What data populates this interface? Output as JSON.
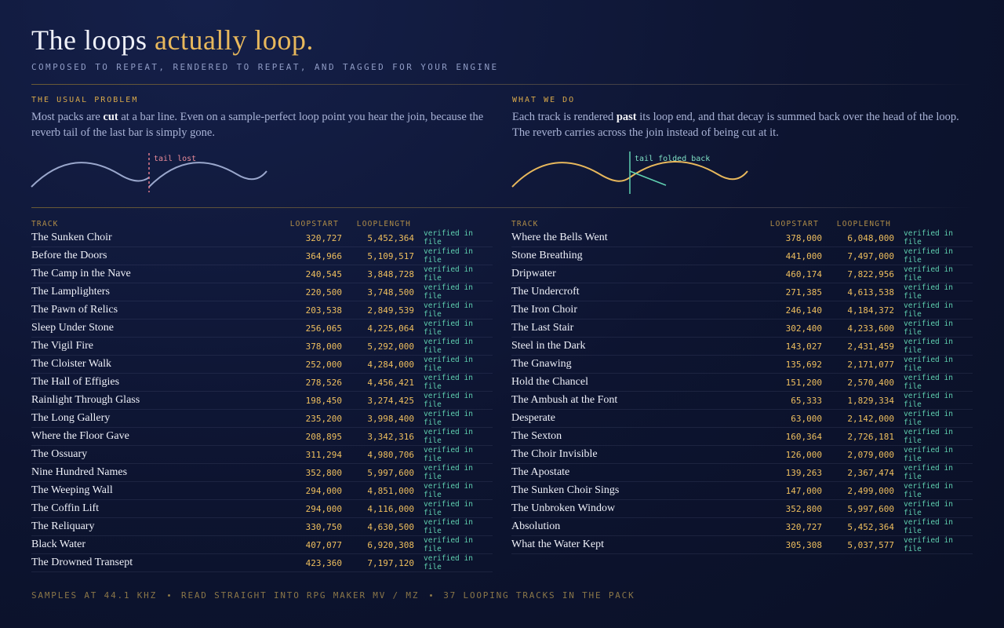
{
  "header": {
    "title_plain": "The loops",
    "title_accent": "actually loop.",
    "subtitle": "COMPOSED TO REPEAT, RENDERED TO REPEAT, AND TAGGED FOR YOUR ENGINE"
  },
  "problem": {
    "label": "THE USUAL PROBLEM",
    "text_before": "Most packs are",
    "text_bold": "cut",
    "text_after": "at a bar line. Even on a sample-perfect loop point you hear the join, because the reverb tail of the last bar is simply gone.",
    "diagram_label": "tail lost"
  },
  "solution": {
    "label": "WHAT WE DO",
    "text_before": "Each track is rendered",
    "text_bold": "past",
    "text_after": "its loop end, and that decay is summed back over the head of the loop. The reverb carries across the join instead of being cut at it.",
    "diagram_label": "tail folded back"
  },
  "tables": [
    {
      "columns": [
        "TRACK",
        "LOOPSTART",
        "LOOPLENGTH"
      ],
      "rows": [
        [
          "The Sunken Choir",
          "320,727",
          "5,452,364",
          "verified in file"
        ],
        [
          "Before the Doors",
          "364,966",
          "5,109,517",
          "verified in file"
        ],
        [
          "The Camp in the Nave",
          "240,545",
          "3,848,728",
          "verified in file"
        ],
        [
          "The Lamplighters",
          "220,500",
          "3,748,500",
          "verified in file"
        ],
        [
          "The Pawn of Relics",
          "203,538",
          "2,849,539",
          "verified in file"
        ],
        [
          "Sleep Under Stone",
          "256,065",
          "4,225,064",
          "verified in file"
        ],
        [
          "The Vigil Fire",
          "378,000",
          "5,292,000",
          "verified in file"
        ],
        [
          "The Cloister Walk",
          "252,000",
          "4,284,000",
          "verified in file"
        ],
        [
          "The Hall of Effigies",
          "278,526",
          "4,456,421",
          "verified in file"
        ],
        [
          "Rainlight Through Glass",
          "198,450",
          "3,274,425",
          "verified in file"
        ],
        [
          "The Long Gallery",
          "235,200",
          "3,998,400",
          "verified in file"
        ],
        [
          "Where the Floor Gave",
          "208,895",
          "3,342,316",
          "verified in file"
        ],
        [
          "The Ossuary",
          "311,294",
          "4,980,706",
          "verified in file"
        ],
        [
          "Nine Hundred Names",
          "352,800",
          "5,997,600",
          "verified in file"
        ],
        [
          "The Weeping Wall",
          "294,000",
          "4,851,000",
          "verified in file"
        ],
        [
          "The Coffin Lift",
          "294,000",
          "4,116,000",
          "verified in file"
        ],
        [
          "The Reliquary",
          "330,750",
          "4,630,500",
          "verified in file"
        ],
        [
          "Black Water",
          "407,077",
          "6,920,308",
          "verified in file"
        ],
        [
          "The Drowned Transept",
          "423,360",
          "7,197,120",
          "verified in file"
        ]
      ]
    },
    {
      "columns": [
        "TRACK",
        "LOOPSTART",
        "LOOPLENGTH"
      ],
      "rows": [
        [
          "Where the Bells Went",
          "378,000",
          "6,048,000",
          "verified in file"
        ],
        [
          "Stone Breathing",
          "441,000",
          "7,497,000",
          "verified in file"
        ],
        [
          "Dripwater",
          "460,174",
          "7,822,956",
          "verified in file"
        ],
        [
          "The Undercroft",
          "271,385",
          "4,613,538",
          "verified in file"
        ],
        [
          "The Iron Choir",
          "246,140",
          "4,184,372",
          "verified in file"
        ],
        [
          "The Last Stair",
          "302,400",
          "4,233,600",
          "verified in file"
        ],
        [
          "Steel in the Dark",
          "143,027",
          "2,431,459",
          "verified in file"
        ],
        [
          "The Gnawing",
          "135,692",
          "2,171,077",
          "verified in file"
        ],
        [
          "Hold the Chancel",
          "151,200",
          "2,570,400",
          "verified in file"
        ],
        [
          "The Ambush at the Font",
          "65,333",
          "1,829,334",
          "verified in file"
        ],
        [
          "Desperate",
          "63,000",
          "2,142,000",
          "verified in file"
        ],
        [
          "The Sexton",
          "160,364",
          "2,726,181",
          "verified in file"
        ],
        [
          "The Choir Invisible",
          "126,000",
          "2,079,000",
          "verified in file"
        ],
        [
          "The Apostate",
          "139,263",
          "2,367,474",
          "verified in file"
        ],
        [
          "The Sunken Choir Sings",
          "147,000",
          "2,499,000",
          "verified in file"
        ],
        [
          "The Unbroken Window",
          "352,800",
          "5,997,600",
          "verified in file"
        ],
        [
          "Absolution",
          "320,727",
          "5,452,364",
          "verified in file"
        ],
        [
          "What the Water Kept",
          "305,308",
          "5,037,577",
          "verified in file"
        ]
      ]
    }
  ],
  "footer": [
    "SAMPLES AT 44.1 KHZ",
    "READ STRAIGHT INTO RPG MAKER MV / MZ",
    "37 LOOPING TRACKS IN THE PACK"
  ]
}
